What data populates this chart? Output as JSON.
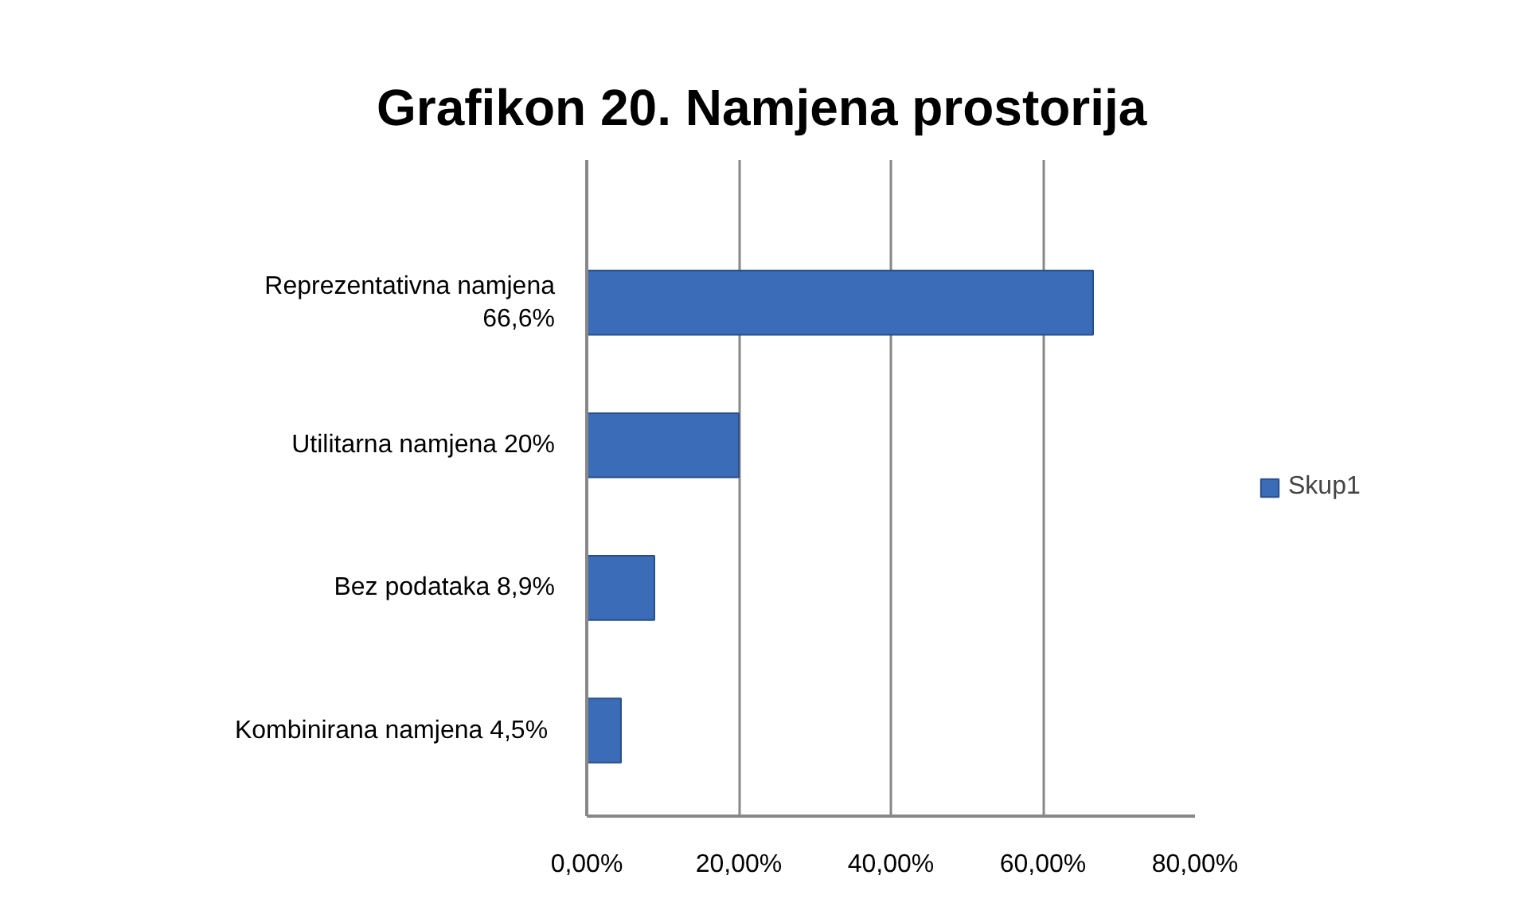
{
  "chart_data": {
    "type": "bar",
    "orientation": "horizontal",
    "title": "Grafikon 20. Namjena prostorija",
    "categories": [
      "Reprezentativna namjena 66,6%",
      "Utilitarna namjena 20%",
      "Bez podataka 8,9%",
      "Kombinirana namjena  4,5%"
    ],
    "series": [
      {
        "name": "Skup1",
        "color": "#3b6cb7",
        "values": [
          66.6,
          20,
          8.9,
          4.5
        ]
      }
    ],
    "xlim": [
      0,
      80
    ],
    "xticks": [
      {
        "value": 0,
        "label": "0,00%"
      },
      {
        "value": 20,
        "label": "20,00%"
      },
      {
        "value": 40,
        "label": "40,00%"
      },
      {
        "value": 60,
        "label": "60,00%"
      },
      {
        "value": 80,
        "label": "80,00%"
      }
    ],
    "grid": "x",
    "legend": "right"
  }
}
